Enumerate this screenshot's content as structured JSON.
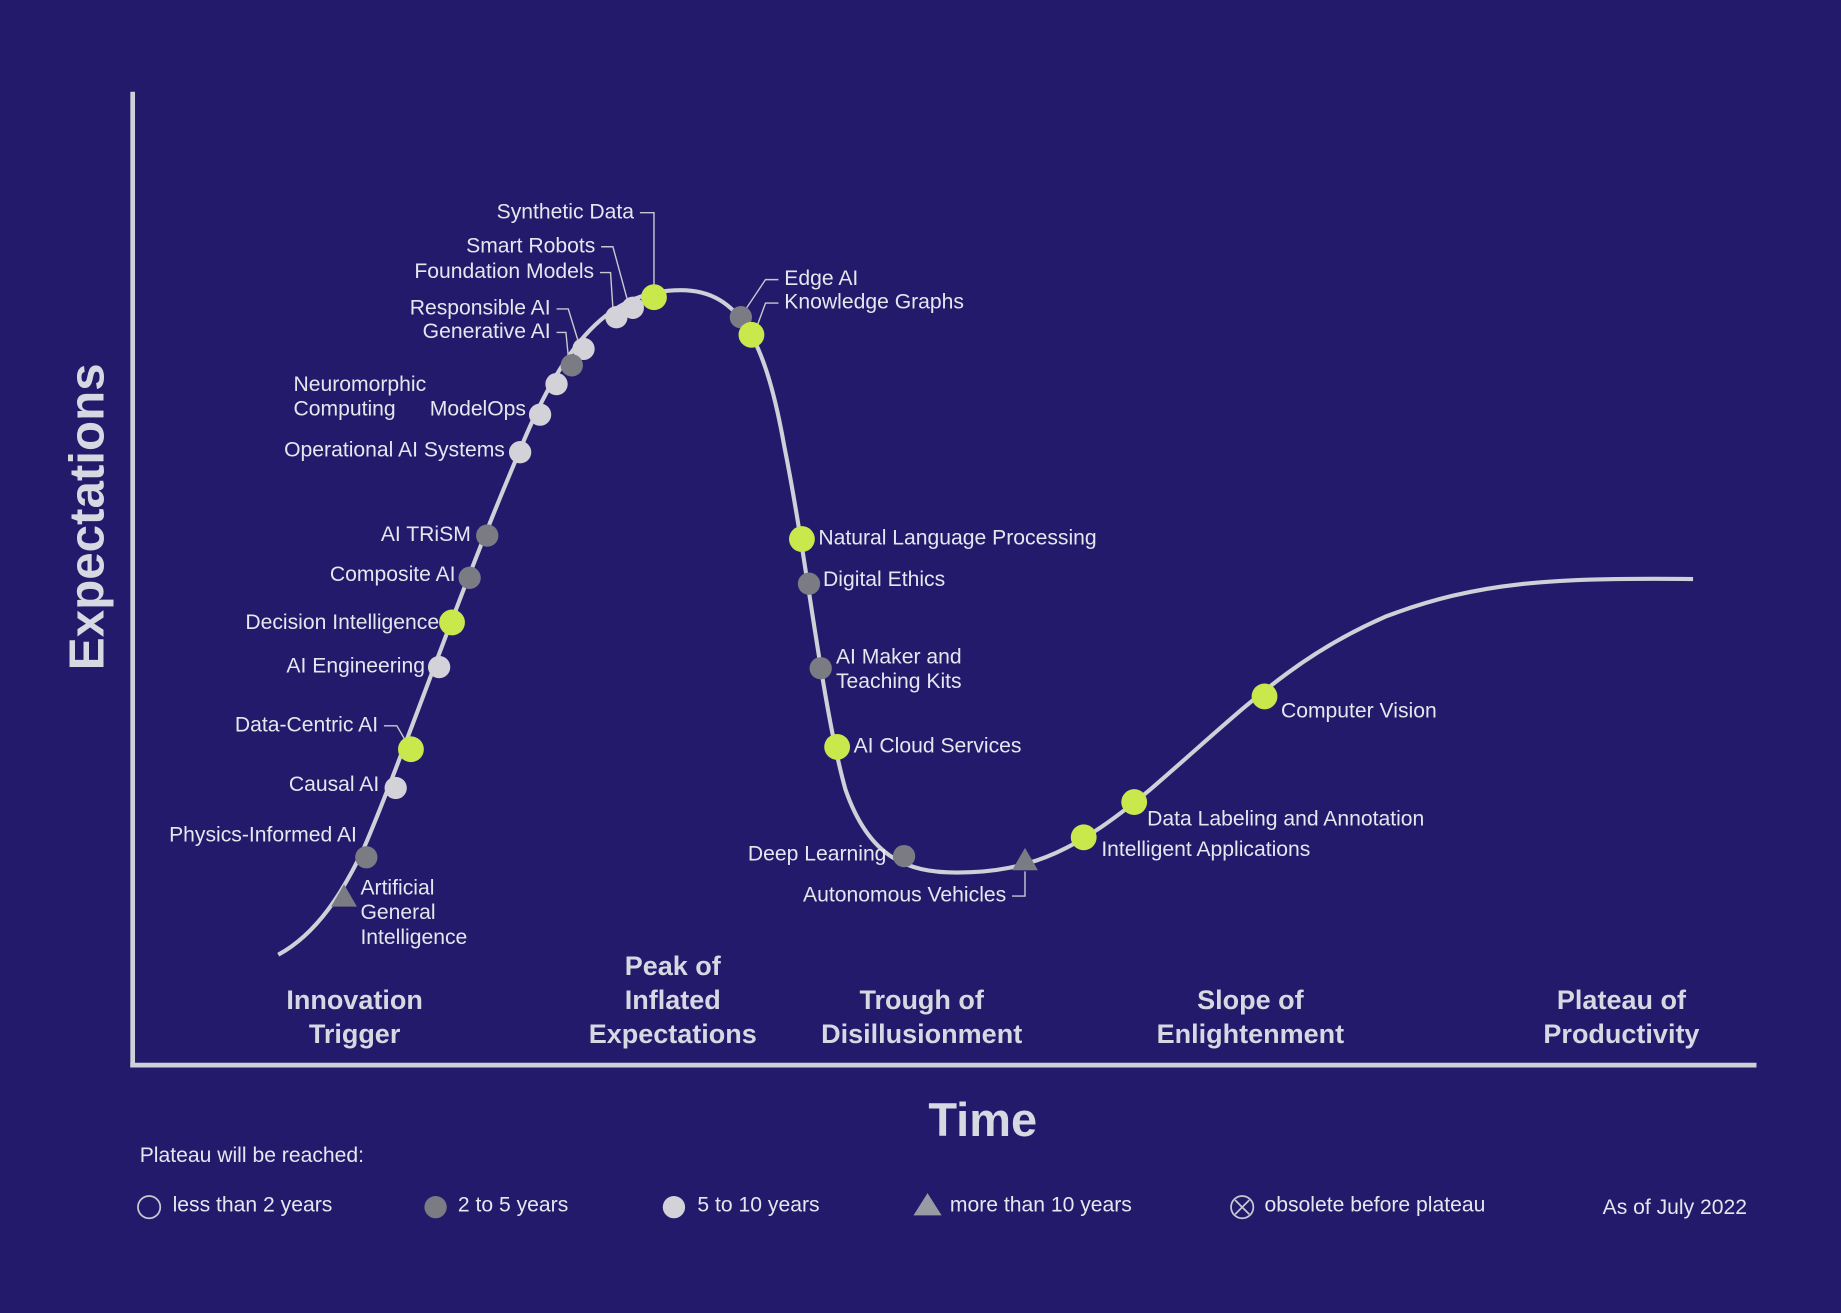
{
  "title_y": "Expectations",
  "title_x": "Time",
  "phases": [
    {
      "label": [
        "Innovation",
        "Trigger"
      ]
    },
    {
      "label": [
        "Peak of",
        "Inflated",
        "Expectations"
      ]
    },
    {
      "label": [
        "Trough of",
        "Disillusionment"
      ]
    },
    {
      "label": [
        "Slope of",
        "Enlightenment"
      ]
    },
    {
      "label": [
        "Plateau of",
        "Productivity"
      ]
    }
  ],
  "nodes": [
    {
      "label": [
        "Synthetic Data"
      ],
      "color": "#c9e84b",
      "shape": "circle"
    },
    {
      "label": [
        "Smart Robots"
      ],
      "color": "#d2d2d8",
      "shape": "circle"
    },
    {
      "label": [
        "Foundation Models"
      ],
      "color": "#d2d2d8",
      "shape": "circle"
    },
    {
      "label": [
        "Responsible AI"
      ],
      "color": "#d2d2d8",
      "shape": "circle"
    },
    {
      "label": [
        "Generative AI"
      ],
      "color": "#7b7b84",
      "shape": "circle"
    },
    {
      "label": [
        "Neuromorphic",
        "Computing"
      ],
      "color": "#d2d2d8",
      "shape": "circle"
    },
    {
      "label": [
        "ModelOps"
      ],
      "color": "#d2d2d8",
      "shape": "circle"
    },
    {
      "label": [
        "Operational AI Systems"
      ],
      "color": "#d2d2d8",
      "shape": "circle"
    },
    {
      "label": [
        "AI TRiSM"
      ],
      "color": "#7b7b84",
      "shape": "circle"
    },
    {
      "label": [
        "Composite AI"
      ],
      "color": "#7b7b84",
      "shape": "circle"
    },
    {
      "label": [
        "Decision Intelligence"
      ],
      "color": "#c9e84b",
      "shape": "circle"
    },
    {
      "label": [
        "AI Engineering"
      ],
      "color": "#d2d2d8",
      "shape": "circle"
    },
    {
      "label": [
        "Data-Centric AI"
      ],
      "color": "#c9e84b",
      "shape": "circle"
    },
    {
      "label": [
        "Causal AI"
      ],
      "color": "#d2d2d8",
      "shape": "circle"
    },
    {
      "label": [
        "Physics-Informed AI"
      ],
      "color": "#7b7b84",
      "shape": "circle"
    },
    {
      "label": [
        "Artificial",
        "General",
        "Intelligence"
      ],
      "color": "#7b7b84",
      "shape": "triangle"
    },
    {
      "label": [
        "Edge AI"
      ],
      "color": "#7b7b84",
      "shape": "circle"
    },
    {
      "label": [
        "Knowledge Graphs"
      ],
      "color": "#c9e84b",
      "shape": "circle"
    },
    {
      "label": [
        "Natural Language Processing"
      ],
      "color": "#c9e84b",
      "shape": "circle"
    },
    {
      "label": [
        "Digital Ethics"
      ],
      "color": "#7b7b84",
      "shape": "circle"
    },
    {
      "label": [
        "AI Maker and",
        "Teaching Kits"
      ],
      "color": "#7b7b84",
      "shape": "circle"
    },
    {
      "label": [
        "AI Cloud Services"
      ],
      "color": "#c9e84b",
      "shape": "circle"
    },
    {
      "label": [
        "Deep Learning"
      ],
      "color": "#7b7b84",
      "shape": "circle"
    },
    {
      "label": [
        "Autonomous Vehicles"
      ],
      "color": "#7b7b84",
      "shape": "triangle"
    },
    {
      "label": [
        "Intelligent Applications"
      ],
      "color": "#c9e84b",
      "shape": "circle"
    },
    {
      "label": [
        "Data Labeling and Annotation"
      ],
      "color": "#c9e84b",
      "shape": "circle"
    },
    {
      "label": [
        "Computer Vision"
      ],
      "color": "#c9e84b",
      "shape": "circle"
    }
  ],
  "legend": {
    "title": "Plateau will be reached:",
    "items": [
      {
        "label": "less than 2 years",
        "marker": "hollow-circle"
      },
      {
        "label": "2 to 5 years",
        "marker": "dark-circle"
      },
      {
        "label": "5 to 10 years",
        "marker": "light-circle"
      },
      {
        "label": "more than 10 years",
        "marker": "triangle"
      },
      {
        "label": "obsolete before plateau",
        "marker": "crossed-circle"
      }
    ]
  },
  "as_of": "As of July 2022"
}
